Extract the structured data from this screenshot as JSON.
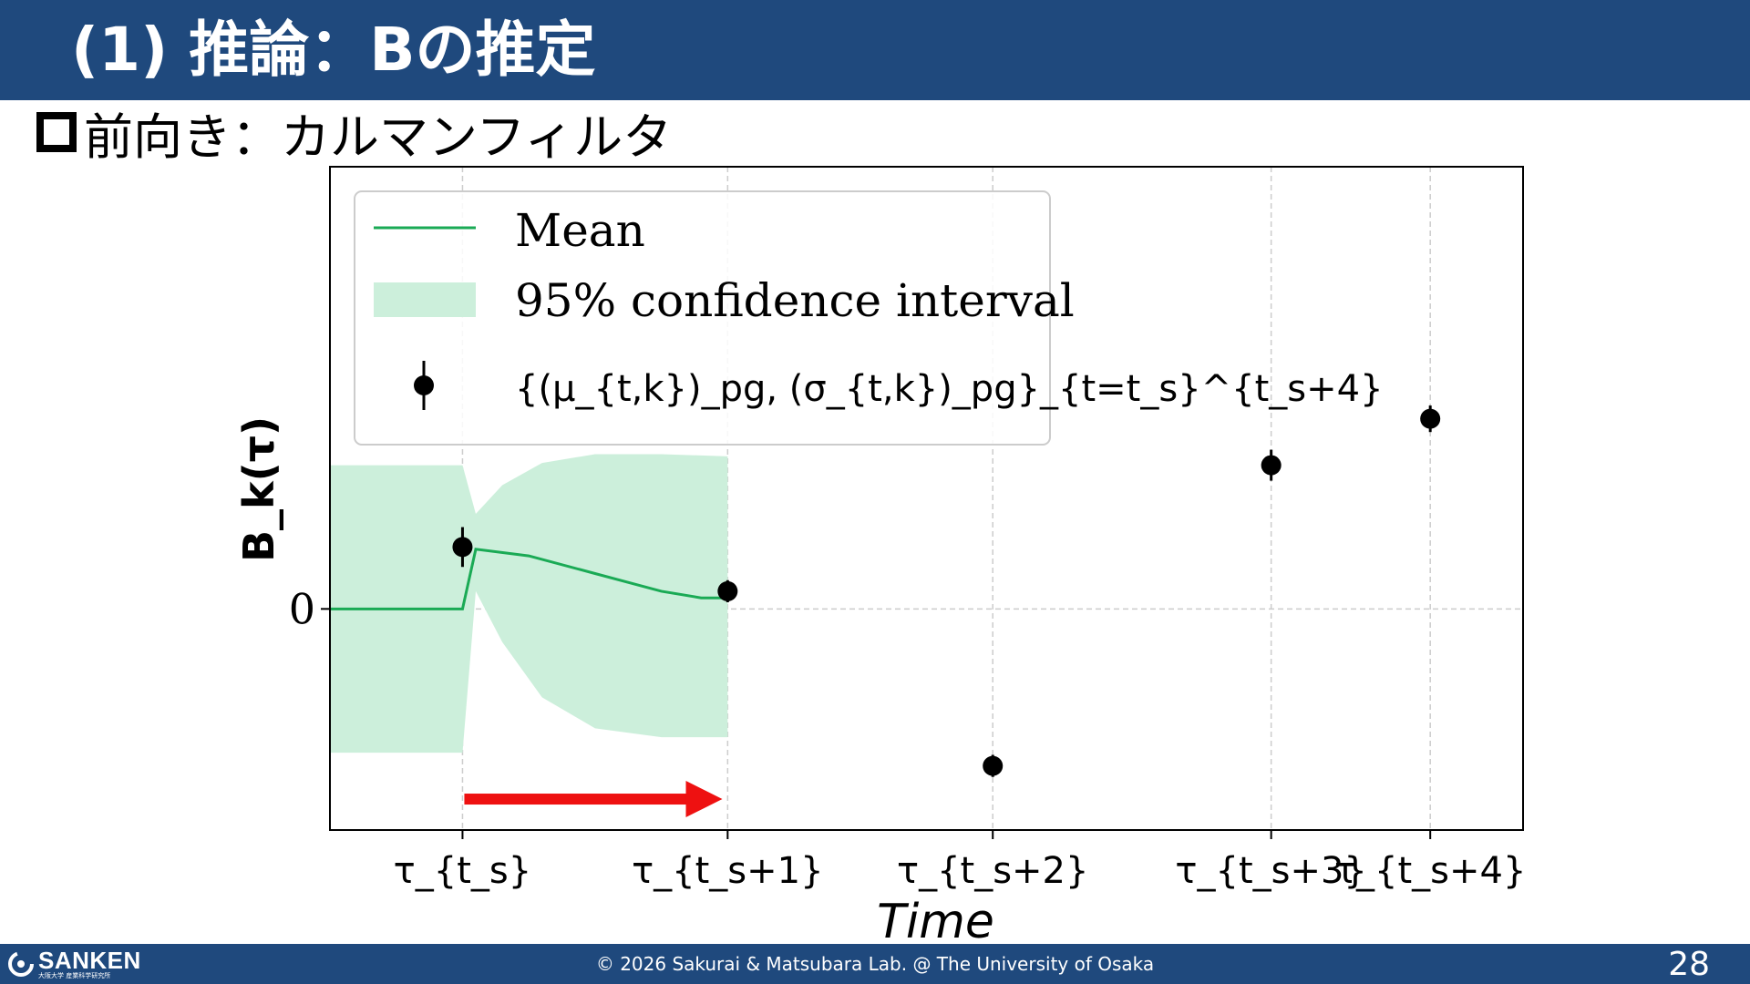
{
  "slide": {
    "title": "(1) 推論：Bの推定",
    "bullet": "前向き：カルマンフィルタ",
    "page_number": "28"
  },
  "footer": {
    "logo_name": "SANKEN",
    "logo_subtitle": "大阪大学 産業科学研究所",
    "copyright": "© 2026 Sakurai & Matsubara Lab. @ The University of Osaka"
  },
  "colors": {
    "header": "#1f497d",
    "mean_line": "#1aaa55",
    "band": "#ccefdb",
    "arrow": "#ee1111",
    "points": "#000000"
  },
  "chart_data": {
    "type": "line",
    "xlabel": "Time",
    "ylabel": "B_k(τ)",
    "x_ticks": [
      {
        "x": 0,
        "label": "τ_{t_s}"
      },
      {
        "x": 1,
        "label": "τ_{t_s+1}"
      },
      {
        "x": 2,
        "label": "τ_{t_s+2}"
      },
      {
        "x": 3.05,
        "label": "τ_{t_s+3}"
      },
      {
        "x": 3.65,
        "label": "τ_{t_s+4}"
      }
    ],
    "y_ticks": [
      {
        "y": 0,
        "label": "0"
      }
    ],
    "xlim": [
      -0.5,
      4.0
    ],
    "ylim": [
      -1.0,
      2.0
    ],
    "grid": true,
    "legend": {
      "placement": "upper-left",
      "entries": [
        {
          "kind": "line",
          "label": "Mean"
        },
        {
          "kind": "band",
          "label": "95% confidence interval"
        },
        {
          "kind": "errorbar",
          "label": "{(μ_{t,k})_pg, (σ_{t,k})_pg}_{t=t_s}^{t_s+4}"
        }
      ]
    },
    "mean": {
      "x": [
        -0.5,
        0,
        0.05,
        0.25,
        0.5,
        0.75,
        0.9,
        1.0
      ],
      "y": [
        0,
        0,
        0.27,
        0.24,
        0.16,
        0.08,
        0.05,
        0.05
      ]
    },
    "band": {
      "x": [
        -0.5,
        0,
        0.05,
        0.15,
        0.3,
        0.5,
        0.75,
        1.0
      ],
      "upper": [
        0.65,
        0.65,
        0.43,
        0.56,
        0.66,
        0.7,
        0.7,
        0.69
      ],
      "lower": [
        -0.65,
        -0.65,
        0.08,
        -0.15,
        -0.4,
        -0.54,
        -0.58,
        -0.58
      ]
    },
    "observations": {
      "x": [
        0,
        1,
        2,
        3.05,
        3.65
      ],
      "y": [
        0.28,
        0.08,
        -0.71,
        0.65,
        0.86
      ],
      "err": [
        0.09,
        0.05,
        0.05,
        0.07,
        0.06
      ]
    },
    "annotation": {
      "kind": "arrow",
      "from_x": 0,
      "to_x": 0.98,
      "y": -0.86
    }
  }
}
